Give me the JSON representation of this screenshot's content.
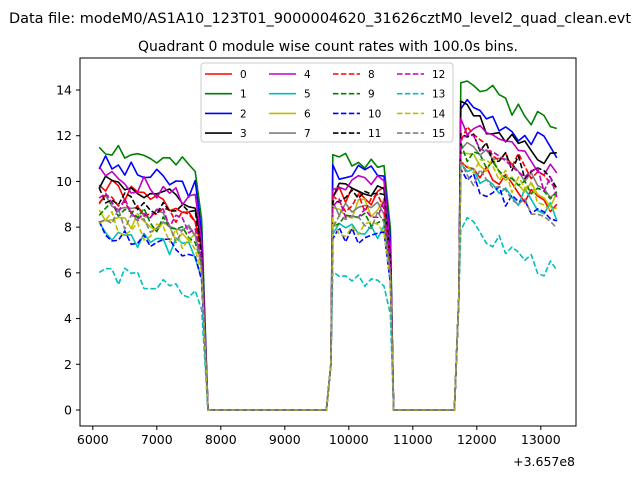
{
  "suptitle": "Data file: modeM0/AS1A10_123T01_9000004620_31626cztM0_level2_quad_clean.evt",
  "chart_data": {
    "type": "line",
    "title": "Quadrant 0 module wise count rates with 100.0s bins.",
    "xlabel": "",
    "ylabel": "",
    "x_offset_label": "+3.657e8",
    "x_offset": 365700000,
    "xlim": [
      5800,
      13550
    ],
    "ylim": [
      -0.7,
      15.4
    ],
    "x_ticks": [
      6000,
      7000,
      8000,
      9000,
      10000,
      11000,
      12000,
      13000
    ],
    "y_ticks": [
      0,
      2,
      4,
      6,
      8,
      10,
      12,
      14
    ],
    "segments": [
      {
        "x_start": 6100,
        "x_end": 7700
      },
      {
        "x_start": 9750,
        "x_end": 10600
      },
      {
        "x_start": 11750,
        "x_end": 13250
      }
    ],
    "series": [
      {
        "name": "0",
        "color": "#ff0000",
        "dash": false,
        "levels": [
          9.8,
          9.3,
          9.6
        ]
      },
      {
        "name": "1",
        "color": "#008000",
        "dash": false,
        "levels": [
          11.6,
          11.0,
          13.2
        ]
      },
      {
        "name": "2",
        "color": "#0000ff",
        "dash": false,
        "levels": [
          10.8,
          10.4,
          12.2
        ]
      },
      {
        "name": "3",
        "color": "#000000",
        "dash": false,
        "levels": [
          10.1,
          9.7,
          11.8
        ]
      },
      {
        "name": "4",
        "color": "#bf00bf",
        "dash": false,
        "levels": [
          10.3,
          9.9,
          11.2
        ]
      },
      {
        "name": "5",
        "color": "#00bfbf",
        "dash": false,
        "levels": [
          8.0,
          7.8,
          9.4
        ]
      },
      {
        "name": "6",
        "color": "#bfbf00",
        "dash": false,
        "levels": [
          8.7,
          8.8,
          10.0
        ]
      },
      {
        "name": "7",
        "color": "#808080",
        "dash": false,
        "levels": [
          9.1,
          8.9,
          10.3
        ]
      },
      {
        "name": "8",
        "color": "#ff0000",
        "dash": true,
        "levels": [
          9.3,
          9.0,
          10.8
        ]
      },
      {
        "name": "9",
        "color": "#008000",
        "dash": true,
        "levels": [
          8.9,
          8.4,
          10.0
        ]
      },
      {
        "name": "10",
        "color": "#0000ff",
        "dash": true,
        "levels": [
          7.9,
          7.7,
          9.0
        ]
      },
      {
        "name": "11",
        "color": "#000000",
        "dash": true,
        "levels": [
          9.5,
          9.2,
          10.7
        ]
      },
      {
        "name": "12",
        "color": "#bf00bf",
        "dash": true,
        "levels": [
          9.2,
          8.8,
          10.6
        ]
      },
      {
        "name": "13",
        "color": "#00bfbf",
        "dash": true,
        "levels": [
          6.1,
          5.8,
          6.8
        ]
      },
      {
        "name": "14",
        "color": "#bfbf00",
        "dash": true,
        "levels": [
          8.4,
          8.0,
          9.8
        ]
      },
      {
        "name": "15",
        "color": "#808080",
        "dash": true,
        "levels": [
          8.6,
          8.3,
          9.2
        ]
      }
    ]
  }
}
